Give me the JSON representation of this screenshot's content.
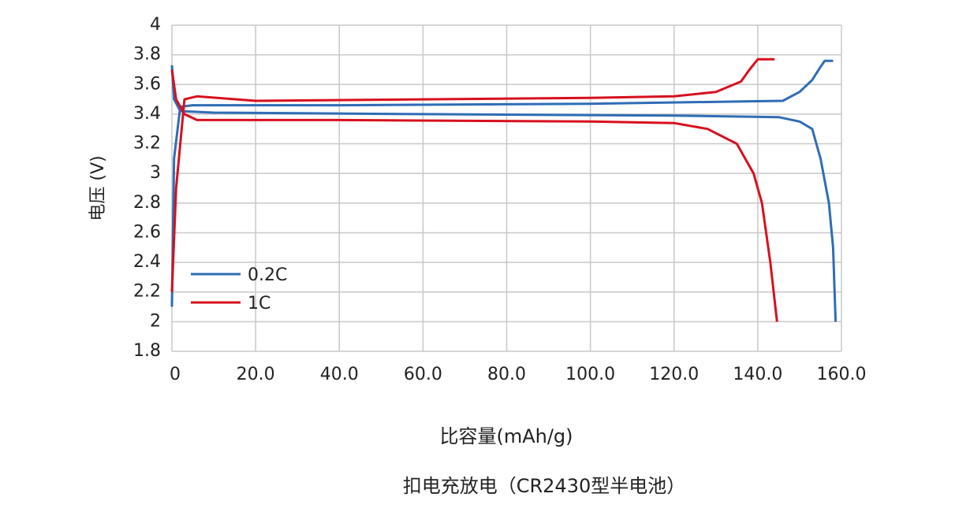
{
  "chart_data": {
    "type": "line",
    "y_label": "电压 (V)",
    "x_label": "比容量(mAh/g)",
    "caption": "扣电充放电（CR2430型半电池）",
    "xlim": [
      0,
      160
    ],
    "ylim": [
      1.8,
      4
    ],
    "xticks": [
      0,
      {
        "value": 20,
        "label": "20.0"
      },
      {
        "value": 40,
        "label": "40.0"
      },
      {
        "value": 60,
        "label": "60.0"
      },
      {
        "value": 80,
        "label": "80.0"
      },
      {
        "value": 100,
        "label": "100.0"
      },
      {
        "value": 120,
        "label": "120.0"
      },
      {
        "value": 140,
        "label": "140.0"
      },
      {
        "value": 160,
        "label": "160.0"
      }
    ],
    "yticks": [
      1.8,
      2,
      2.2,
      2.4,
      2.6,
      2.8,
      3,
      3.2,
      3.4,
      3.6,
      3.8,
      4
    ],
    "grid": true,
    "legend": "lower-left",
    "series": [
      {
        "name": "0.2C",
        "color": "#2f6db5",
        "x": [
          0,
          0.5,
          2,
          5,
          40,
          100,
          146,
          150,
          153,
          155,
          156,
          158,
          null,
          0,
          0.5,
          2,
          10,
          60,
          120,
          145,
          150,
          153,
          155,
          157,
          158,
          158.6
        ],
        "values": [
          2.1,
          3.1,
          3.45,
          3.46,
          3.46,
          3.47,
          3.49,
          3.55,
          3.63,
          3.72,
          3.76,
          3.76,
          null,
          3.73,
          3.5,
          3.42,
          3.41,
          3.4,
          3.39,
          3.38,
          3.35,
          3.3,
          3.1,
          2.8,
          2.5,
          2.0
        ]
      },
      {
        "name": "1C",
        "color": "#d7101e",
        "x": [
          0,
          1,
          3,
          6,
          20,
          60,
          100,
          120,
          130,
          136,
          138,
          140,
          144,
          null,
          0,
          1,
          3,
          6,
          40,
          100,
          120,
          128,
          135,
          139,
          141,
          143,
          144.6
        ],
        "values": [
          2.2,
          2.9,
          3.5,
          3.52,
          3.49,
          3.5,
          3.51,
          3.52,
          3.55,
          3.62,
          3.7,
          3.77,
          3.77,
          null,
          3.7,
          3.5,
          3.4,
          3.36,
          3.36,
          3.35,
          3.34,
          3.3,
          3.2,
          3.0,
          2.8,
          2.4,
          2.0
        ]
      }
    ]
  }
}
